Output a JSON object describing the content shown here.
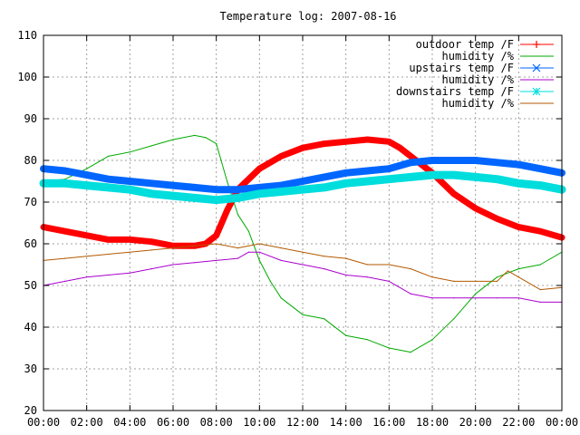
{
  "chart_data": {
    "type": "line",
    "title": "Temperature log: 2007-08-16",
    "xlabel": "",
    "ylabel": "",
    "xlim": [
      "00:00",
      "24:00"
    ],
    "ylim": [
      20,
      110
    ],
    "y_ticks": [
      20,
      30,
      40,
      50,
      60,
      70,
      80,
      90,
      100,
      110
    ],
    "x_ticks": [
      "00:00",
      "02:00",
      "04:00",
      "06:00",
      "08:00",
      "10:00",
      "12:00",
      "14:00",
      "16:00",
      "18:00",
      "20:00",
      "22:00",
      "00:00"
    ],
    "grid": true,
    "legend": "top-right",
    "series": [
      {
        "name": "outdoor temp /F",
        "color": "#ff0000",
        "marker": "plus",
        "x": [
          0,
          1,
          2,
          3,
          4,
          5,
          6,
          7,
          7.5,
          8,
          8.5,
          9,
          10,
          11,
          12,
          13,
          14,
          15,
          16,
          16.5,
          17,
          18,
          19,
          20,
          21,
          22,
          23,
          24
        ],
        "values": [
          64,
          63,
          62,
          61,
          61,
          60.5,
          59.5,
          59.5,
          60,
          62,
          68,
          73,
          78,
          81,
          83,
          84,
          84.5,
          85,
          84.5,
          83,
          81,
          77,
          72,
          68.5,
          66,
          64,
          63,
          61.5
        ]
      },
      {
        "name": "humidity /%",
        "color": "#00aa00",
        "marker": "none",
        "x": [
          0,
          1,
          2,
          3,
          4,
          5,
          6,
          7,
          7.5,
          8,
          8.5,
          9,
          9.5,
          10,
          10.5,
          11,
          12,
          13,
          14,
          15,
          16,
          17,
          18,
          19,
          20,
          21,
          22,
          23,
          24
        ],
        "values": [
          75,
          75.5,
          78,
          81,
          82,
          83.5,
          85,
          86,
          85.5,
          84,
          75,
          67,
          63,
          56,
          51,
          47,
          43,
          42,
          38,
          37,
          35,
          34,
          37,
          42,
          48,
          52,
          54,
          55,
          58
        ]
      },
      {
        "name": "upstairs temp /F",
        "color": "#0066ff",
        "marker": "cross",
        "x": [
          0,
          1,
          2,
          3,
          4,
          5,
          6,
          7,
          8,
          9,
          10,
          11,
          12,
          13,
          14,
          15,
          16,
          17,
          18,
          19,
          20,
          21,
          22,
          23,
          24
        ],
        "values": [
          78,
          77.5,
          76.5,
          75.5,
          75,
          74.5,
          74,
          73.5,
          73,
          73,
          73.5,
          74,
          75,
          76,
          77,
          77.5,
          78,
          79.5,
          80,
          80,
          80,
          79.5,
          79,
          78,
          77
        ]
      },
      {
        "name": "humidity /%",
        "color": "#aa00cc",
        "marker": "none",
        "x": [
          0,
          1,
          2,
          3,
          4,
          5,
          6,
          7,
          8,
          9,
          9.5,
          10,
          11,
          12,
          13,
          14,
          15,
          16,
          17,
          18,
          19,
          20,
          21,
          22,
          23,
          24
        ],
        "values": [
          50,
          51,
          52,
          52.5,
          53,
          54,
          55,
          55.5,
          56,
          56.5,
          58,
          58,
          56,
          55,
          54,
          52.5,
          52,
          51,
          48,
          47,
          47,
          47,
          47,
          47,
          46,
          46
        ]
      },
      {
        "name": "downstairs temp /F",
        "color": "#00dddd",
        "marker": "star",
        "x": [
          0,
          1,
          2,
          3,
          4,
          5,
          6,
          7,
          8,
          9,
          10,
          11,
          12,
          13,
          14,
          15,
          16,
          17,
          18,
          19,
          20,
          21,
          22,
          23,
          24
        ],
        "values": [
          74.5,
          74.5,
          74,
          73.5,
          73,
          72,
          71.5,
          71,
          70.5,
          71,
          72,
          72.5,
          73,
          73.5,
          74.5,
          75,
          75.5,
          76,
          76.5,
          76.5,
          76,
          75.5,
          74.5,
          74,
          73
        ]
      },
      {
        "name": "humidity /%",
        "color": "#b35900",
        "marker": "none",
        "x": [
          0,
          1,
          2,
          3,
          4,
          5,
          6,
          7,
          8,
          9,
          10,
          11,
          12,
          13,
          14,
          15,
          16,
          17,
          18,
          19,
          20,
          21,
          21.5,
          22,
          23,
          24
        ],
        "values": [
          56,
          56.5,
          57,
          57.5,
          58,
          58.5,
          59,
          59.5,
          60,
          59,
          60,
          59,
          58,
          57,
          56.5,
          55,
          55,
          54,
          52,
          51,
          51,
          51,
          53.5,
          52,
          49,
          49.5
        ]
      }
    ]
  }
}
